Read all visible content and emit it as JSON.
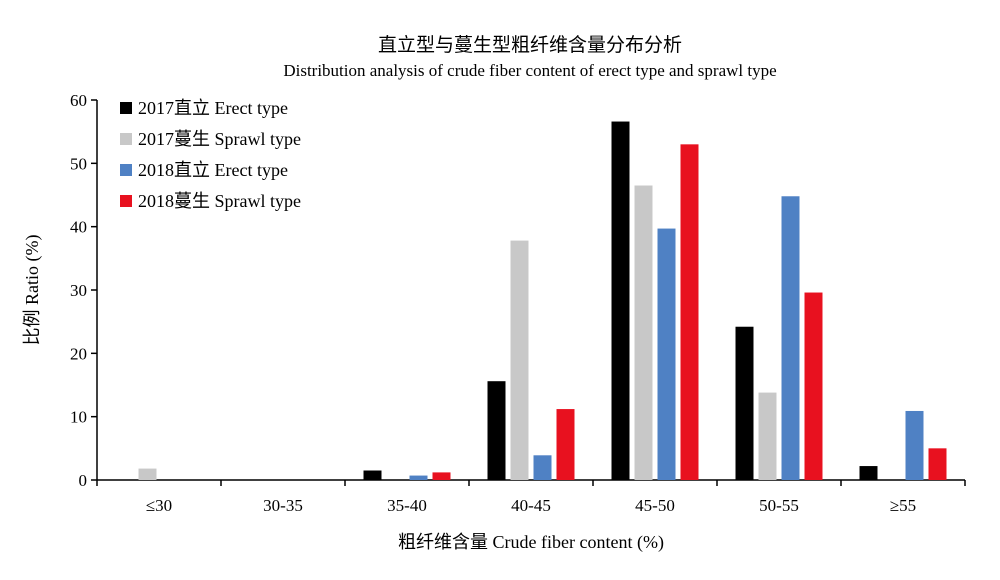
{
  "chart_data": {
    "type": "bar",
    "title": "直立型与蔓生型粗纤维含量分布分析",
    "subtitle": "Distribution analysis of crude fiber content of erect type and sprawl type",
    "xlabel": "粗纤维含量 Crude fiber content (%)",
    "ylabel": "比例 Ratio (%)",
    "ylim": [
      0,
      60
    ],
    "yticks": [
      0,
      10,
      20,
      30,
      40,
      50,
      60
    ],
    "grid": false,
    "legend_position": "top-left",
    "categories": [
      "≤30",
      "30-35",
      "35-40",
      "40-45",
      "45-50",
      "50-55",
      "≥55"
    ],
    "series": [
      {
        "name": "2017直立 Erect type",
        "color": "#000000",
        "values": [
          0,
          0,
          1.5,
          15.6,
          56.6,
          24.2,
          2.2
        ]
      },
      {
        "name": "2017蔓生 Sprawl type",
        "color": "#c8c8c8",
        "values": [
          1.8,
          0,
          0,
          37.8,
          46.5,
          13.8,
          0
        ]
      },
      {
        "name": "2018直立 Erect type",
        "color": "#4f81c4",
        "values": [
          0,
          0,
          0.7,
          3.9,
          39.7,
          44.8,
          10.9
        ]
      },
      {
        "name": "2018蔓生 Sprawl type",
        "color": "#e8111f",
        "values": [
          0,
          0,
          1.2,
          11.2,
          53.0,
          29.6,
          5.0
        ]
      }
    ]
  }
}
